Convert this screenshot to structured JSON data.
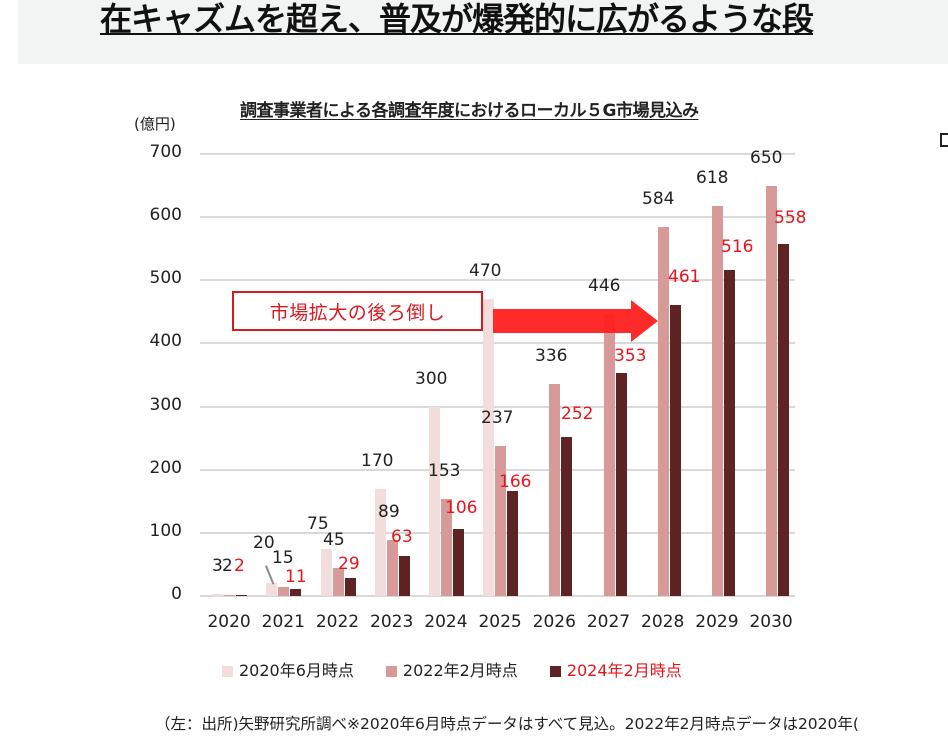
{
  "header": {
    "headline": "在キャズムを超え、普及が爆発的に広がるような段"
  },
  "chart": {
    "title": "調査事業者による各調査年度におけるローカル５G市場見込み",
    "unit": "(億円)",
    "callout": "市場拡大の後ろ倒し",
    "yticks": [
      "700",
      "600",
      "500",
      "400",
      "300",
      "200",
      "100",
      "0"
    ],
    "years": [
      "2020",
      "2021",
      "2022",
      "2023",
      "2024",
      "2025",
      "2026",
      "2027",
      "2028",
      "2029",
      "2030"
    ],
    "legend": [
      {
        "label": "2020年6月時点",
        "color": "#f2dcdc"
      },
      {
        "label": "2022年2月時点",
        "color": "#d89999"
      },
      {
        "label": "2024年2月時点",
        "color": "#5e2323"
      }
    ],
    "labels": {
      "s2020": [
        "3",
        "20",
        "75",
        "170",
        "300",
        "470",
        "",
        "",
        "",
        "",
        ""
      ],
      "s2022": [
        "2",
        "15",
        "45",
        "89",
        "153",
        "237",
        "336",
        "446",
        "584",
        "618",
        "650"
      ],
      "s2024": [
        "2",
        "11",
        "29",
        "63",
        "106",
        "166",
        "252",
        "353",
        "461",
        "516",
        "558"
      ]
    }
  },
  "footnote": "（左：出所)矢野研究所調べ※2020年6月時点データはすべて見込。2022年2月時点データは2020年(",
  "chart_data": {
    "type": "bar",
    "title": "調査事業者による各調査年度におけるローカル５G市場見込み",
    "xlabel": "",
    "ylabel": "(億円)",
    "ylim": [
      0,
      700
    ],
    "yticks": [
      0,
      100,
      200,
      300,
      400,
      500,
      600,
      700
    ],
    "grid": true,
    "legend_position": "bottom",
    "categories": [
      "2020",
      "2021",
      "2022",
      "2023",
      "2024",
      "2025",
      "2026",
      "2027",
      "2028",
      "2029",
      "2030"
    ],
    "series": [
      {
        "name": "2020年6月時点",
        "color": "#f2dcdc",
        "values": [
          3,
          20,
          75,
          170,
          300,
          470,
          null,
          null,
          null,
          null,
          null
        ]
      },
      {
        "name": "2022年2月時点",
        "color": "#d89999",
        "values": [
          2,
          15,
          45,
          89,
          153,
          237,
          336,
          446,
          584,
          618,
          650
        ]
      },
      {
        "name": "2024年2月時点",
        "color": "#5e2323",
        "values": [
          2,
          11,
          29,
          63,
          106,
          166,
          252,
          353,
          461,
          516,
          558
        ]
      }
    ],
    "annotations": [
      {
        "text": "市場拡大の後ろ倒し",
        "type": "callout-box-with-right-arrow",
        "from_year": "2025",
        "to_year": "2028"
      }
    ]
  }
}
